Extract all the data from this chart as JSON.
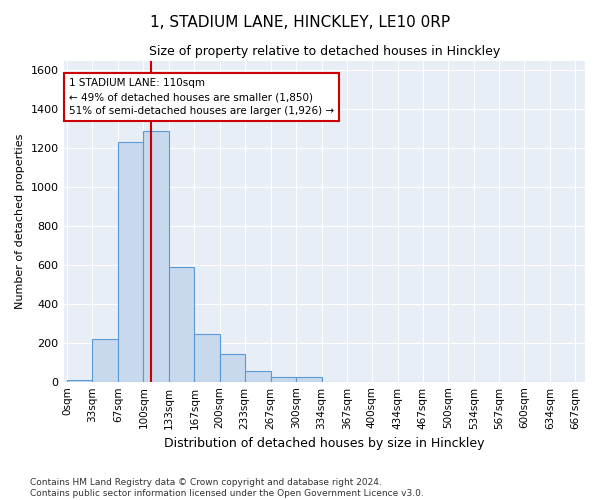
{
  "title": "1, STADIUM LANE, HINCKLEY, LE10 0RP",
  "subtitle": "Size of property relative to detached houses in Hinckley",
  "xlabel": "Distribution of detached houses by size in Hinckley",
  "ylabel": "Number of detached properties",
  "bar_color": "#c8d8ed",
  "bar_edge_color": "#5b9bd5",
  "bg_color": "#e8eef6",
  "grid_color": "#ffffff",
  "annotation_box_color": "#cc0000",
  "vline_color": "#cc0000",
  "vline_x": 110,
  "annotation_text": "1 STADIUM LANE: 110sqm\n← 49% of detached houses are smaller (1,850)\n51% of semi-detached houses are larger (1,926) →",
  "footer": "Contains HM Land Registry data © Crown copyright and database right 2024.\nContains public sector information licensed under the Open Government Licence v3.0.",
  "bin_edges": [
    0,
    33,
    67,
    100,
    133,
    167,
    200,
    233,
    267,
    300,
    334,
    367,
    400,
    434,
    467,
    500,
    534,
    567,
    600,
    634,
    667
  ],
  "bar_heights": [
    10,
    220,
    1230,
    1290,
    590,
    245,
    140,
    55,
    25,
    25,
    0,
    0,
    0,
    0,
    0,
    0,
    0,
    0,
    0,
    0
  ],
  "ylim": [
    0,
    1650
  ],
  "yticks": [
    0,
    200,
    400,
    600,
    800,
    1000,
    1200,
    1400,
    1600
  ]
}
